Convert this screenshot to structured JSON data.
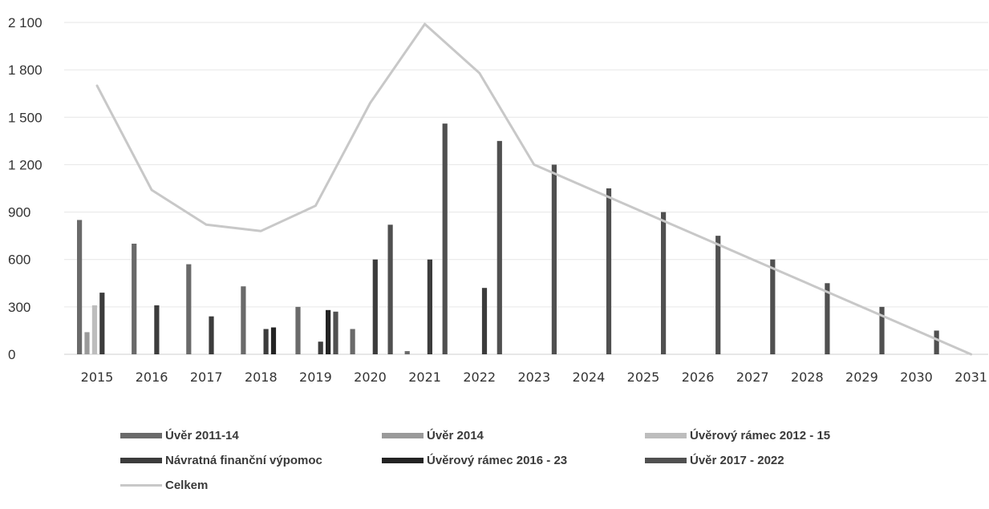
{
  "chart_data": {
    "type": "bar",
    "title": "",
    "xlabel": "",
    "ylabel": "",
    "ylim": [
      0,
      2100
    ],
    "yticks": [
      0,
      300,
      600,
      900,
      1200,
      1500,
      1800,
      2100
    ],
    "ytick_labels": [
      "0",
      "300",
      "600",
      "900",
      "1 200",
      "1 500",
      "1 800",
      "2 100"
    ],
    "grid": true,
    "legend_position": "bottom",
    "categories": [
      "2015",
      "2016",
      "2017",
      "2018",
      "2019",
      "2020",
      "2021",
      "2022",
      "2023",
      "2024",
      "2025",
      "2026",
      "2027",
      "2028",
      "2029",
      "2030",
      "2031"
    ],
    "series": [
      {
        "name": "Úvěr 2011-14",
        "kind": "bar",
        "color": "#6a6a6a",
        "values": [
          850,
          700,
          570,
          430,
          300,
          160,
          20,
          0,
          0,
          0,
          0,
          0,
          0,
          0,
          0,
          0,
          0
        ]
      },
      {
        "name": "Úvěr 2014",
        "kind": "bar",
        "color": "#9a9a9a",
        "values": [
          140,
          0,
          0,
          0,
          0,
          0,
          0,
          0,
          0,
          0,
          0,
          0,
          0,
          0,
          0,
          0,
          0
        ]
      },
      {
        "name": "Úvěrový rámec  2012 - 15",
        "kind": "bar",
        "color": "#bdbdbd",
        "values": [
          310,
          0,
          0,
          0,
          0,
          0,
          0,
          0,
          0,
          0,
          0,
          0,
          0,
          0,
          0,
          0,
          0
        ]
      },
      {
        "name": "Návratná finanční výpomoc",
        "kind": "bar",
        "color": "#3c3c3c",
        "values": [
          390,
          310,
          240,
          160,
          80,
          600,
          600,
          420,
          0,
          0,
          0,
          0,
          0,
          0,
          0,
          0,
          0
        ]
      },
      {
        "name": "Úvěrový rámec  2016 - 23",
        "kind": "bar",
        "color": "#232323",
        "values": [
          0,
          0,
          0,
          170,
          280,
          0,
          0,
          0,
          0,
          0,
          0,
          0,
          0,
          0,
          0,
          0,
          0
        ]
      },
      {
        "name": "Úvěr 2017 - 2022",
        "kind": "bar",
        "color": "#505050",
        "values": [
          0,
          0,
          0,
          0,
          270,
          820,
          1460,
          1350,
          1200,
          1050,
          900,
          750,
          600,
          450,
          300,
          150,
          0
        ]
      },
      {
        "name": "Celkem",
        "kind": "line",
        "color": "#c8c8c8",
        "values": [
          1700,
          1040,
          820,
          780,
          940,
          1590,
          2090,
          1780,
          1200,
          1050,
          900,
          750,
          600,
          450,
          300,
          150,
          0
        ]
      }
    ]
  }
}
